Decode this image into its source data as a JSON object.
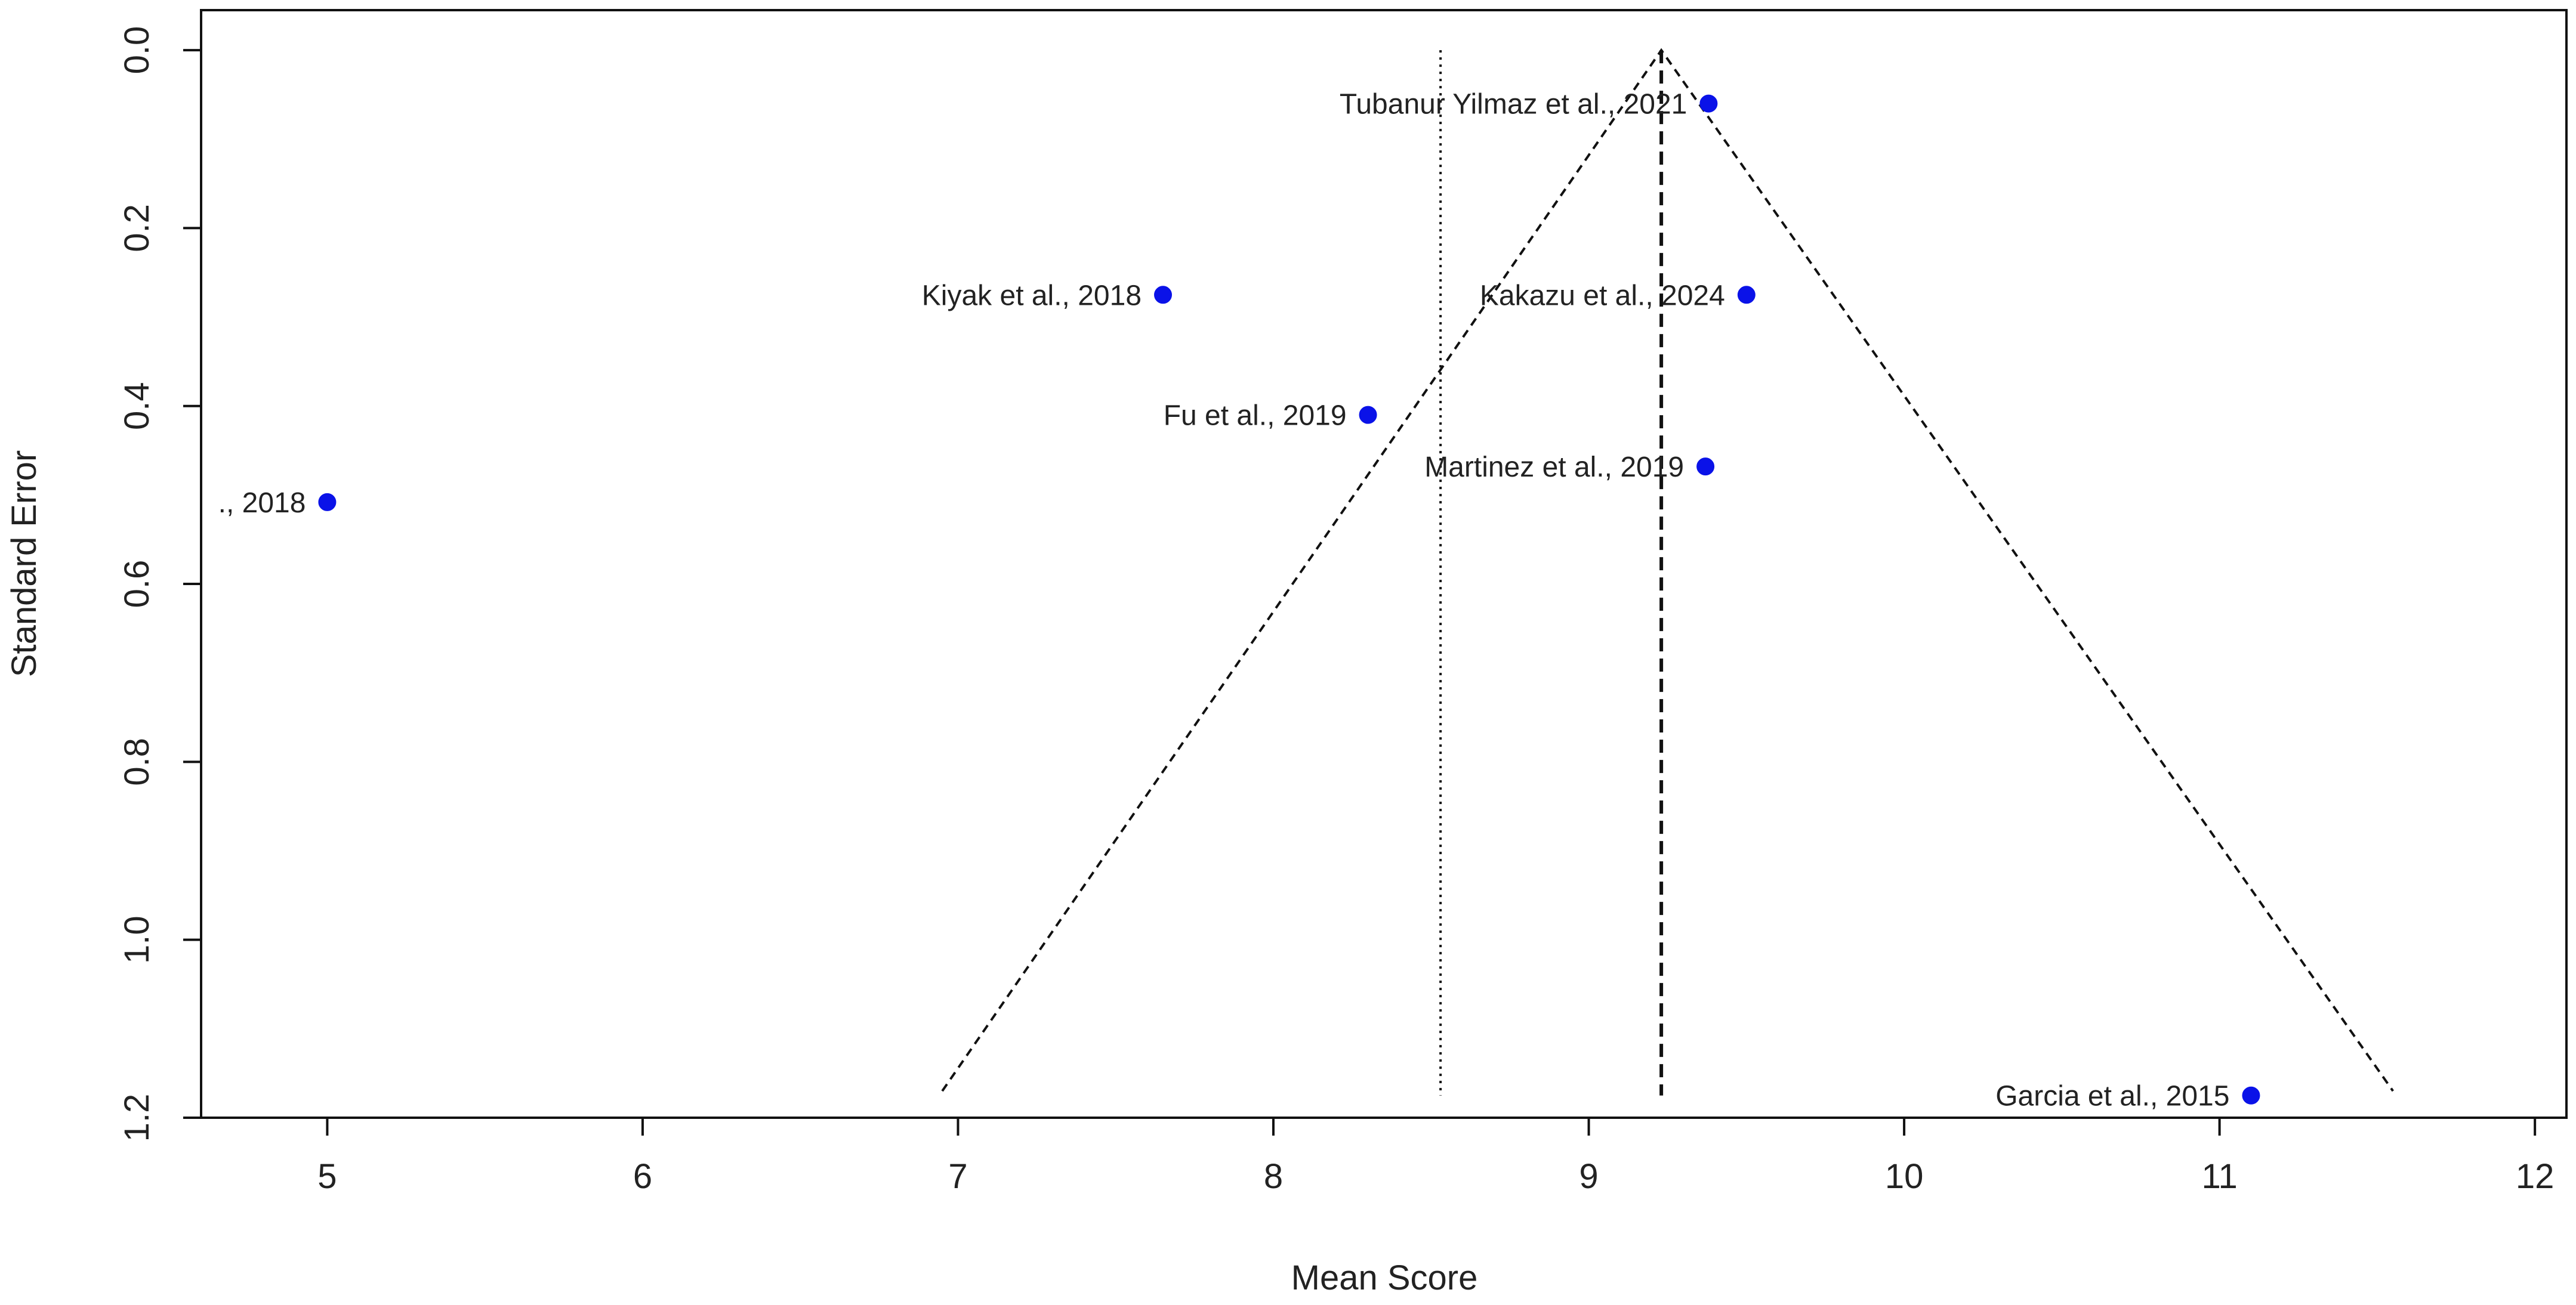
{
  "chart_data": {
    "type": "scatter",
    "title": "",
    "xlabel": "Mean Score",
    "ylabel": "Standard Error",
    "xlim": [
      4.6,
      12.1
    ],
    "ylim": [
      -0.045,
      1.2
    ],
    "y_axis_reversed": true,
    "x_ticks": [
      5,
      6,
      7,
      8,
      9,
      10,
      11,
      12
    ],
    "x_tick_labels": [
      "5",
      "6",
      "7",
      "8",
      "9",
      "10",
      "11",
      "12"
    ],
    "y_ticks": [
      0,
      0.2,
      0.4,
      0.6,
      0.8,
      1.0,
      1.2
    ],
    "y_tick_labels": [
      "0.0",
      "0.2",
      "0.4",
      "0.6",
      "0.8",
      "1.0",
      "1.2"
    ],
    "grid": false,
    "point_color": "#0a12e8",
    "points": [
      {
        "label": "Tubanur Yilmaz et al., 2021",
        "x": 9.38,
        "y": 0.06
      },
      {
        "label": "Kiyak et al., 2018",
        "x": 7.65,
        "y": 0.275
      },
      {
        "label": "Kakazu et al., 2024",
        "x": 9.5,
        "y": 0.275
      },
      {
        "label": "Fu et al., 2019",
        "x": 8.3,
        "y": 0.41
      },
      {
        "label": "Martinez et al., 2019",
        "x": 9.37,
        "y": 0.468
      },
      {
        "label": "., 2018",
        "x": 5.0,
        "y": 0.508
      },
      {
        "label": "Garcia et al., 2015",
        "x": 11.1,
        "y": 1.175
      }
    ],
    "pooled_estimate": 9.23,
    "reference_line": 8.53,
    "funnel": {
      "apex": [
        9.23,
        0
      ],
      "bottom_left": [
        6.95,
        1.17
      ],
      "bottom_right": [
        11.55,
        1.17
      ]
    },
    "reference_line_y_range": [
      0,
      1.175
    ]
  }
}
